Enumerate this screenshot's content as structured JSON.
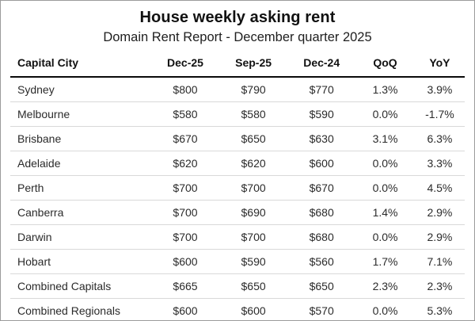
{
  "chart_data": {
    "type": "table",
    "title": "House weekly asking rent",
    "subtitle": "Domain Rent Report - December quarter 2025",
    "columns": [
      "Capital City",
      "Dec-25",
      "Sep-25",
      "Dec-24",
      "QoQ",
      "YoY"
    ],
    "rows": [
      [
        "Sydney",
        "$800",
        "$790",
        "$770",
        "1.3%",
        "3.9%"
      ],
      [
        "Melbourne",
        "$580",
        "$580",
        "$590",
        "0.0%",
        "-1.7%"
      ],
      [
        "Brisbane",
        "$670",
        "$650",
        "$630",
        "3.1%",
        "6.3%"
      ],
      [
        "Adelaide",
        "$620",
        "$620",
        "$600",
        "0.0%",
        "3.3%"
      ],
      [
        "Perth",
        "$700",
        "$700",
        "$670",
        "0.0%",
        "4.5%"
      ],
      [
        "Canberra",
        "$700",
        "$690",
        "$680",
        "1.4%",
        "2.9%"
      ],
      [
        "Darwin",
        "$700",
        "$700",
        "$680",
        "0.0%",
        "2.9%"
      ],
      [
        "Hobart",
        "$600",
        "$590",
        "$560",
        "1.7%",
        "7.1%"
      ],
      [
        "Combined Capitals",
        "$665",
        "$650",
        "$650",
        "2.3%",
        "2.3%"
      ],
      [
        "Combined Regionals",
        "$600",
        "$600",
        "$570",
        "0.0%",
        "5.3%"
      ]
    ],
    "layout": {
      "first_column_align": "left",
      "value_columns_align": "center",
      "header_rule_color": "#0a0a0a",
      "row_divider_color": "#d9d9d9",
      "background_color": "#ffffff",
      "frame_border_color": "#9b9b9b",
      "text_color": "#2b2b2b",
      "title_color": "#111111"
    }
  }
}
